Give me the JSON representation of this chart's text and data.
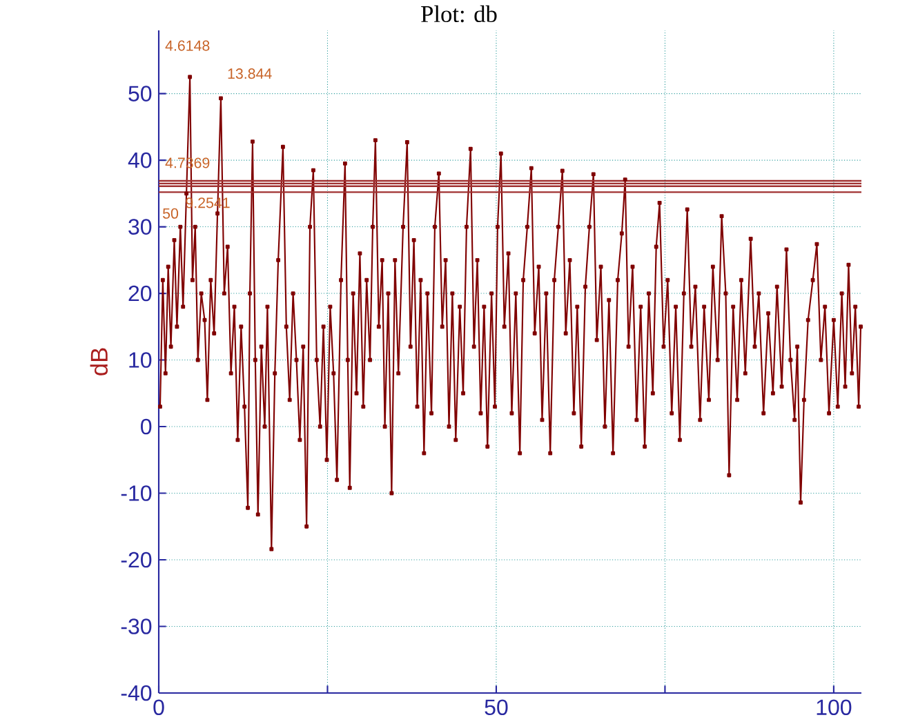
{
  "chart_data": {
    "type": "line",
    "title": "Plot: db",
    "ylabel": "dB",
    "xlim": [
      0,
      104.1
    ],
    "ylim": [
      -40,
      59.5
    ],
    "xticks": [
      0,
      {
        "value": 25,
        "label": null
      },
      50,
      {
        "value": 75,
        "label": null
      },
      100
    ],
    "yticks": [
      -40,
      -30,
      -20,
      -10,
      0,
      10,
      20,
      30,
      40,
      50
    ],
    "grid": true,
    "marker": "square",
    "line_style": "solid",
    "ref_lines": [
      {
        "axis": "y",
        "value": 36.9,
        "color": "#a03030"
      },
      {
        "axis": "y",
        "value": 36.5,
        "color": "#a03030"
      },
      {
        "axis": "y",
        "value": 36.1,
        "color": "#a03030"
      },
      {
        "axis": "y",
        "value": 35.2,
        "color": "#a03030"
      }
    ],
    "annotations": [
      "4.6148",
      "13.844",
      "4.7369",
      "9.2541",
      "50"
    ],
    "series": [
      {
        "color": "#800000",
        "x": [
          0.2,
          0.6,
          1.0,
          1.4,
          1.8,
          2.3,
          2.7,
          3.2,
          3.6,
          4.1,
          4.6148,
          5.0,
          5.4,
          5.8,
          6.3,
          6.8,
          7.2,
          7.7,
          8.2,
          8.7,
          9.2,
          9.7,
          10.2,
          10.7,
          11.2,
          11.7,
          12.2,
          12.7,
          13.2,
          13.5,
          13.9,
          14.3,
          14.7,
          15.2,
          15.7,
          16.1,
          16.7,
          17.2,
          17.7,
          18.4,
          18.9,
          19.4,
          19.9,
          20.4,
          20.9,
          21.4,
          21.9,
          22.4,
          22.9,
          23.4,
          23.9,
          24.4,
          24.9,
          25.4,
          25.9,
          26.4,
          27.0,
          27.6,
          28.0,
          28.3,
          28.8,
          29.3,
          29.8,
          30.3,
          30.8,
          31.3,
          31.7,
          32.1,
          32.6,
          33.1,
          33.5,
          34.0,
          34.5,
          35.0,
          35.5,
          36.2,
          36.8,
          37.3,
          37.8,
          38.3,
          38.8,
          39.3,
          39.8,
          40.4,
          40.9,
          41.5,
          42.0,
          42.5,
          43.0,
          43.5,
          44.0,
          44.6,
          45.1,
          45.6,
          46.2,
          46.7,
          47.2,
          47.7,
          48.2,
          48.7,
          49.3,
          49.8,
          50.2,
          50.7,
          51.2,
          51.8,
          52.3,
          52.9,
          53.5,
          54.0,
          54.6,
          55.2,
          55.7,
          56.3,
          56.8,
          57.4,
          58.0,
          58.6,
          59.2,
          59.8,
          60.3,
          60.9,
          61.5,
          62.0,
          62.6,
          63.2,
          63.8,
          64.4,
          64.9,
          65.5,
          66.1,
          66.7,
          67.3,
          68.0,
          68.6,
          69.1,
          69.6,
          70.2,
          70.8,
          71.4,
          72.0,
          72.6,
          73.2,
          73.7,
          74.2,
          74.8,
          75.4,
          76.0,
          76.6,
          77.2,
          77.8,
          78.3,
          78.9,
          79.5,
          80.2,
          80.8,
          81.5,
          82.1,
          82.8,
          83.4,
          84.0,
          84.5,
          85.1,
          85.7,
          86.3,
          86.9,
          87.7,
          88.3,
          88.9,
          89.6,
          90.3,
          91.0,
          91.6,
          92.3,
          93.0,
          93.6,
          94.2,
          94.6,
          95.1,
          95.6,
          96.2,
          96.9,
          97.5,
          98.1,
          98.7,
          99.3,
          100.0,
          100.6,
          101.2,
          101.7,
          102.2,
          102.7,
          103.2,
          103.7,
          104.0
        ],
        "values": [
          3,
          22,
          8,
          24,
          12,
          28,
          15,
          30,
          18,
          35,
          52.5,
          22,
          30,
          10,
          20,
          16,
          4,
          22,
          14,
          32,
          49.3,
          20,
          27,
          8,
          18,
          -2,
          15,
          3,
          -12.2,
          20,
          42.8,
          10,
          -13.2,
          12,
          0,
          18,
          -18.4,
          8,
          25,
          42,
          15,
          4,
          20,
          10,
          -2,
          12,
          -15,
          30,
          38.5,
          10,
          0,
          15,
          -5,
          18,
          8,
          -8,
          22,
          39.5,
          10,
          -9.2,
          20,
          5,
          26,
          3,
          22,
          10,
          30,
          43,
          15,
          25,
          0,
          20,
          -10,
          25,
          8,
          30,
          42.7,
          12,
          28,
          3,
          22,
          -4,
          20,
          2,
          30,
          38,
          15,
          25,
          0,
          20,
          -2,
          18,
          5,
          30,
          41.7,
          12,
          25,
          2,
          18,
          -3,
          20,
          3,
          30,
          41,
          15,
          26,
          2,
          20,
          -4,
          22,
          30,
          38.8,
          14,
          24,
          1,
          20,
          -4,
          22,
          30,
          38.4,
          14,
          25,
          2,
          18,
          -3,
          21,
          30,
          37.9,
          13,
          24,
          0,
          19,
          -4,
          22,
          29,
          37.1,
          12,
          24,
          1,
          18,
          -3,
          20,
          5,
          27,
          33.6,
          12,
          22,
          2,
          18,
          -2,
          20,
          32.6,
          12,
          21,
          1,
          18,
          4,
          24,
          10,
          31.6,
          20,
          -7.3,
          18,
          4,
          22,
          8,
          28.2,
          12,
          20,
          2,
          17,
          5,
          21,
          6,
          26.6,
          10,
          1,
          12,
          -11.4,
          4,
          16,
          22,
          27.4,
          10,
          18,
          2,
          16,
          3,
          20,
          6,
          24.3,
          8,
          18,
          3,
          15
        ]
      }
    ]
  }
}
